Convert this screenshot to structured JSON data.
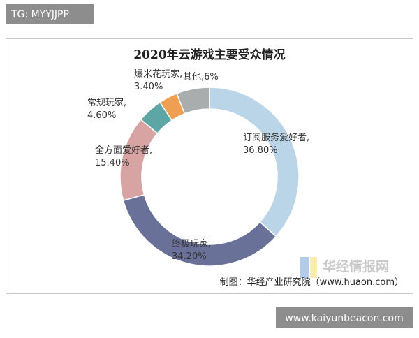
{
  "badge": "TG: MYYJJPP",
  "chart_data": {
    "type": "donut",
    "title": "2020年云游戏主要受众情况",
    "categories": [
      "订阅服务爱好者",
      "终极玩家",
      "全方面爱好者",
      "常规玩家",
      "爆米花玩家",
      "其他"
    ],
    "values": [
      36.8,
      34.2,
      15.4,
      4.6,
      3.4,
      6
    ],
    "value_labels": [
      "36.80%",
      "34.20%",
      "15.40%",
      "4.60%",
      "3.40%",
      "6%"
    ],
    "label_separator": ",",
    "colors": [
      "#b9d5e7",
      "#6a7199",
      "#d7a4a3",
      "#5ea6a6",
      "#ee9f52",
      "#a9adad"
    ],
    "source": "制图：华经产业研究院（www.huaon.com）",
    "watermark": "华经情报网"
  },
  "footer": "www.kaiyunbeacon.com"
}
